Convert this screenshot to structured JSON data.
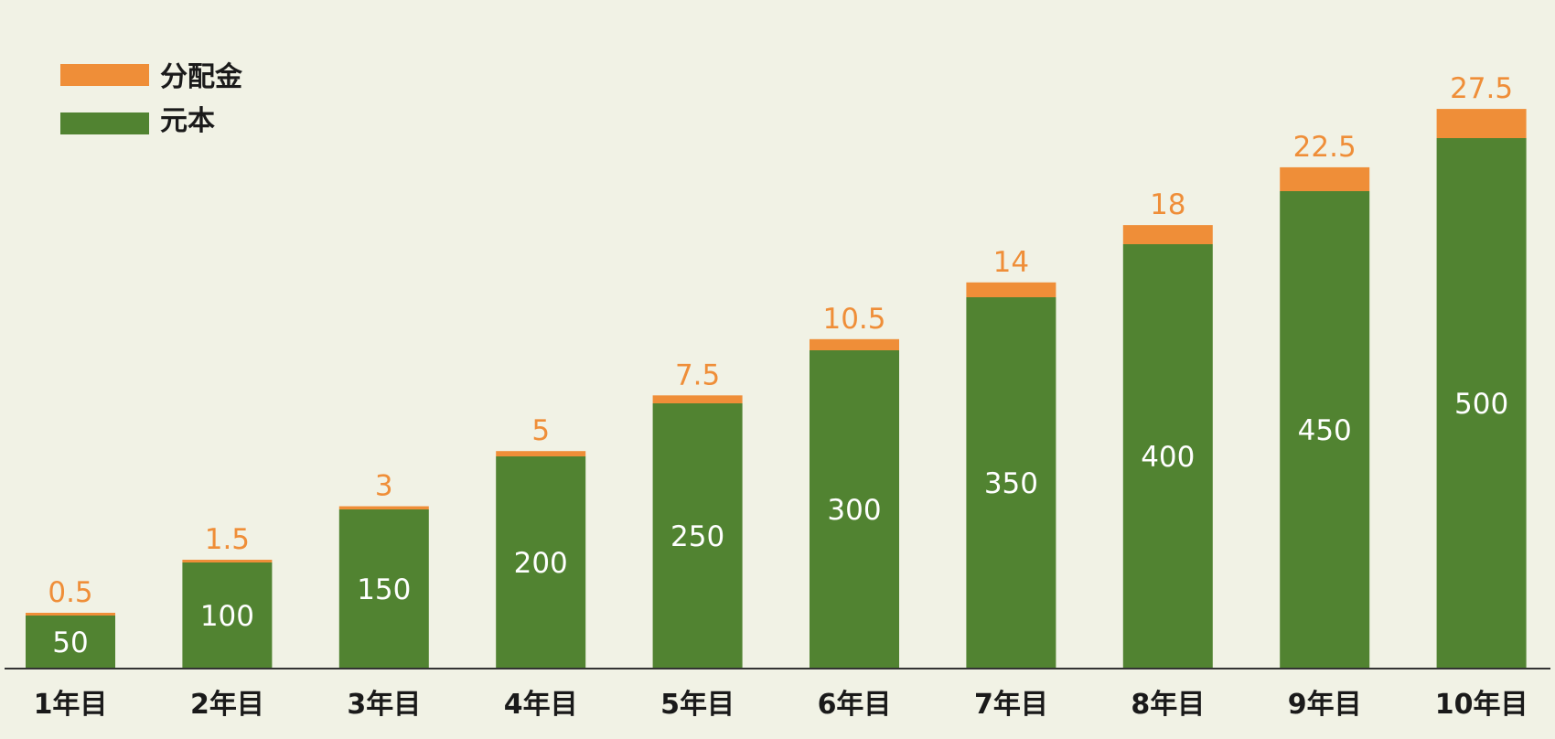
{
  "colors": {
    "background": "#f1f2e5",
    "principal": "#518331",
    "dividend": "#ef8e38",
    "axis": "#333333"
  },
  "legend": {
    "dividend_label": "分配金",
    "principal_label": "元本"
  },
  "chart_data": {
    "type": "bar",
    "stacked": true,
    "categories": [
      "1年目",
      "2年目",
      "3年目",
      "4年目",
      "5年目",
      "6年目",
      "7年目",
      "8年目",
      "9年目",
      "10年目"
    ],
    "series": [
      {
        "name": "元本",
        "values": [
          50,
          100,
          150,
          200,
          250,
          300,
          350,
          400,
          450,
          500
        ]
      },
      {
        "name": "分配金",
        "values": [
          0.5,
          1.5,
          3,
          5,
          7.5,
          10.5,
          14,
          18,
          22.5,
          27.5
        ]
      }
    ],
    "title": "",
    "xlabel": "",
    "ylabel": "",
    "ylim": [
      0,
      550
    ],
    "grid": false,
    "legend_position": "top-left",
    "data_labels": true
  }
}
